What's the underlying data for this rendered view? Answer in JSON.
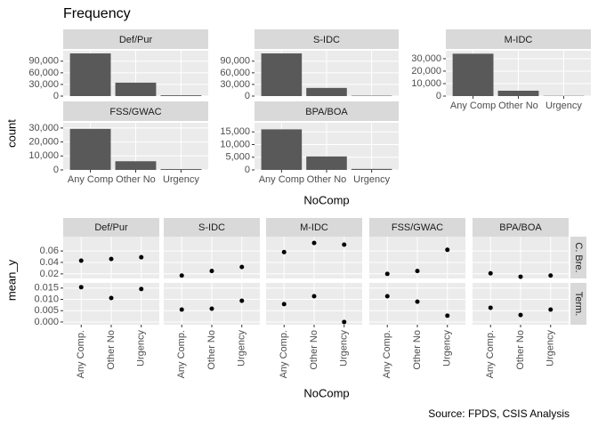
{
  "chart_data": [
    {
      "type": "bar",
      "title": "Frequency",
      "x_label": "NoComp",
      "y_label": "count",
      "color": "#595959",
      "grid": true,
      "categories": [
        "Any Comp",
        "Other No",
        "Urgency"
      ],
      "panels": [
        {
          "name": "Def/Pur",
          "values": [
            110000,
            34600,
            2000
          ],
          "ylim": [
            0,
            117000
          ],
          "yticks": [
            0,
            {
              "value": 30000,
              "label": "30,000"
            },
            {
              "value": 60000,
              "label": "60,000"
            },
            {
              "value": 90000,
              "label": "90,000"
            }
          ]
        },
        {
          "name": "S-IDC",
          "values": [
            110000,
            21000,
            1000
          ],
          "ylim": [
            0,
            117000
          ],
          "yticks": [
            0,
            {
              "value": 30000,
              "label": "30,000"
            },
            {
              "value": 60000,
              "label": "60,000"
            },
            {
              "value": 90000,
              "label": "90,000"
            }
          ]
        },
        {
          "name": "M-IDC",
          "values": [
            34000,
            4300,
            200
          ],
          "ylim": [
            0,
            36400
          ],
          "yticks": [
            0,
            {
              "value": 10000,
              "label": "10,000"
            },
            {
              "value": 20000,
              "label": "20,000"
            },
            {
              "value": 30000,
              "label": "30,000"
            }
          ]
        },
        {
          "name": "FSS/GWAC",
          "values": [
            29400,
            6200,
            600
          ],
          "ylim": [
            0,
            33750
          ],
          "yticks": [
            0,
            {
              "value": 10000,
              "label": "10,000"
            },
            {
              "value": 20000,
              "label": "20,000"
            },
            {
              "value": 30000,
              "label": "30,000"
            }
          ]
        },
        {
          "name": "BPA/BOA",
          "values": [
            16000,
            5300,
            400
          ],
          "ylim": [
            0,
            18600
          ],
          "yticks": [
            0,
            {
              "value": 5000,
              "label": "5,000"
            },
            {
              "value": 10000,
              "label": "10,000"
            },
            {
              "value": 15000,
              "label": "15,000"
            }
          ]
        }
      ]
    },
    {
      "type": "scatter",
      "x_label": "NoComp",
      "y_label": "mean_y",
      "caption": "Source: FPDS, CSIS Analysis",
      "color": "#000000",
      "grid": true,
      "categories": [
        "Any Comp.",
        "Other No",
        "Urgency"
      ],
      "columns": [
        "Def/Pur",
        "S-IDC",
        "M-IDC",
        "FSS/GWAC",
        "BPA/BOA"
      ],
      "rows": [
        {
          "name": "C. Bre.",
          "ylim": [
            0.012,
            0.085
          ],
          "yticks": [
            0.02,
            0.04,
            0.06
          ],
          "values": [
            [
              0.043,
              0.046,
              0.049
            ],
            [
              0.017,
              0.025,
              0.032
            ],
            [
              0.058,
              0.074,
              0.071
            ],
            [
              0.02,
              0.025,
              0.062
            ],
            [
              0.021,
              0.015,
              0.017
            ]
          ]
        },
        {
          "name": "Term.",
          "ylim": [
            -0.0012,
            0.0173
          ],
          "yticks": [
            {
              "value": 0,
              "label": "0.000"
            },
            {
              "value": 0.005,
              "label": "0.005"
            },
            {
              "value": 0.01,
              "label": "0.010"
            },
            {
              "value": 0.015,
              "label": "0.015"
            }
          ],
          "values": [
            [
              0.0154,
              0.0106,
              0.0146
            ],
            [
              0.0055,
              0.0059,
              0.0094
            ],
            [
              0.0079,
              0.0114,
              0.0
            ],
            [
              0.0114,
              0.009,
              0.0028
            ],
            [
              0.0063,
              0.0031,
              0.0055
            ]
          ]
        }
      ]
    }
  ]
}
